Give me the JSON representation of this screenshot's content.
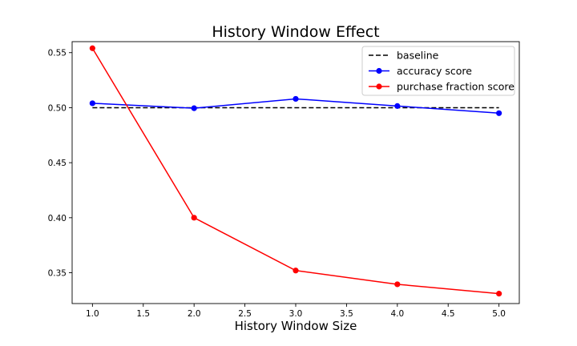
{
  "chart_data": {
    "type": "line",
    "title": "History Window Effect",
    "xlabel": "History Window Size",
    "ylabel": "",
    "xlim": [
      0.8,
      5.2
    ],
    "ylim": [
      0.322,
      0.56
    ],
    "xticks": [
      1.0,
      1.5,
      2.0,
      2.5,
      3.0,
      3.5,
      4.0,
      4.5,
      5.0
    ],
    "xtick_labels": [
      "1.0",
      "1.5",
      "2.0",
      "2.5",
      "3.0",
      "3.5",
      "4.0",
      "4.5",
      "5.0"
    ],
    "yticks": [
      0.35,
      0.4,
      0.45,
      0.5,
      0.55
    ],
    "ytick_labels": [
      "0.35",
      "0.40",
      "0.45",
      "0.50",
      "0.55"
    ],
    "grid": false,
    "legend_position": "top-right",
    "series": [
      {
        "name": "baseline",
        "color": "#000000",
        "style": "dashed",
        "marker": "none",
        "x": [
          1,
          2,
          3,
          4,
          5
        ],
        "values": [
          0.5,
          0.5,
          0.5,
          0.5,
          0.5
        ]
      },
      {
        "name": "accuracy score",
        "color": "#0000ff",
        "style": "solid",
        "marker": "circle",
        "x": [
          1,
          2,
          3,
          4,
          5
        ],
        "values": [
          0.504,
          0.4995,
          0.508,
          0.5015,
          0.495
        ]
      },
      {
        "name": "purchase fraction score",
        "color": "#ff0000",
        "style": "solid",
        "marker": "circle",
        "x": [
          1,
          2,
          3,
          4,
          5
        ],
        "values": [
          0.554,
          0.4,
          0.352,
          0.3395,
          0.331
        ]
      }
    ]
  }
}
